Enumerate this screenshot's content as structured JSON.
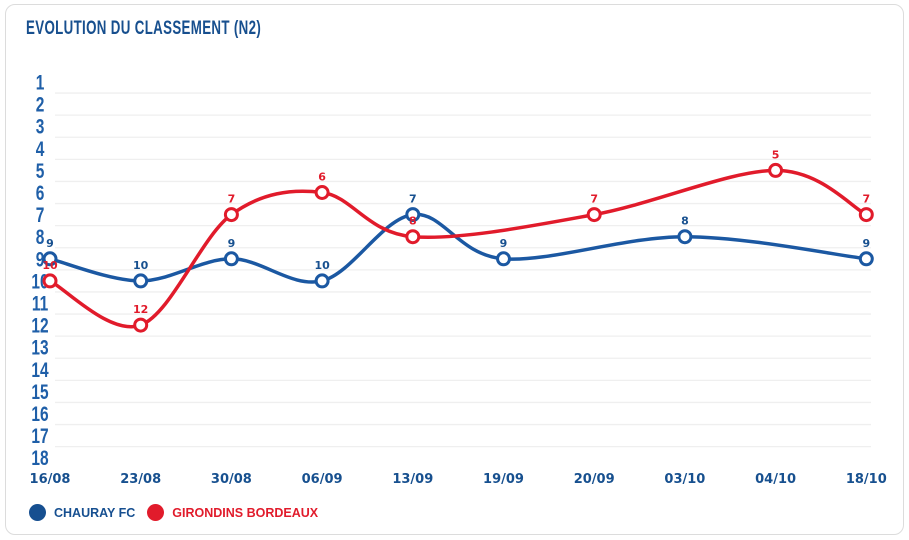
{
  "card": {
    "title": "EVOLUTION DU CLASSEMENT (N2)"
  },
  "colors": {
    "title": "#174f8e",
    "axis_label_blue": "#1f5fa8",
    "x_label_blue": "#17508f",
    "grid": "#efefef",
    "card_border": "#dcdcdc",
    "background": "#ffffff",
    "marker_fill": "#ffffff"
  },
  "legend": {
    "items": [
      {
        "label": "CHAURAY FC",
        "color": "#164f90"
      },
      {
        "label": "GIRONDINS BORDEAUX",
        "color": "#e11b2b"
      }
    ]
  },
  "chart_data": {
    "type": "line",
    "title": "EVOLUTION DU CLASSEMENT (N2)",
    "x_categories": [
      "16/08",
      "23/08",
      "30/08",
      "06/09",
      "13/09",
      "19/09",
      "20/09",
      "03/10",
      "04/10",
      "18/10"
    ],
    "y_axis": {
      "label_ticks": [
        1,
        2,
        3,
        4,
        5,
        6,
        7,
        8,
        9,
        10,
        11,
        12,
        13,
        14,
        15,
        16,
        17,
        18
      ],
      "min": 1,
      "max": 18,
      "inverted": true
    },
    "grid": "horizontal-only",
    "line_style": "smooth",
    "legend_position": "bottom-left",
    "series": [
      {
        "name": "CHAURAY FC",
        "slug": "chauray-fc",
        "color": "#1b58a2",
        "label_color": "#17508f",
        "values": [
          9,
          10,
          9,
          10,
          7,
          9,
          null,
          8,
          null,
          9
        ]
      },
      {
        "name": "GIRONDINS BORDEAUX",
        "slug": "girondins-bordeaux",
        "color": "#e11b2b",
        "label_color": "#e11b2b",
        "values": [
          10,
          12,
          7,
          6,
          8,
          null,
          7,
          null,
          5,
          7
        ]
      }
    ]
  }
}
